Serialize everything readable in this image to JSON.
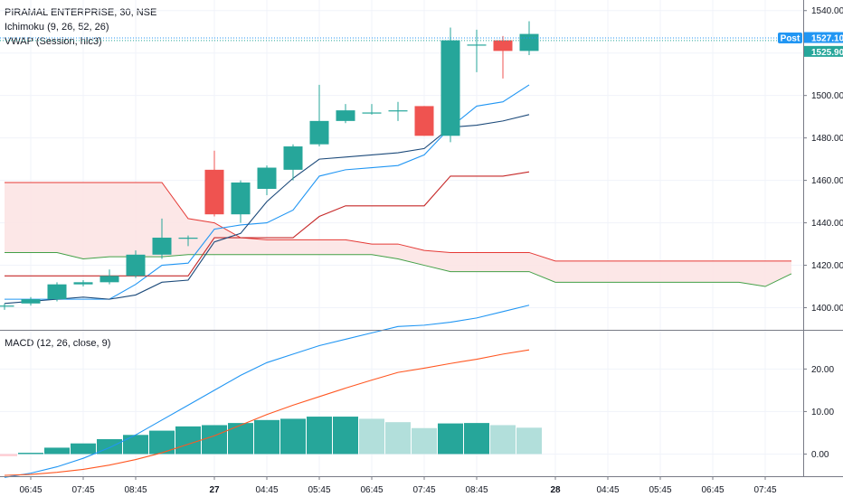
{
  "legend": {
    "title": "PIRAMAL ENTERPRISE, 30, NSE",
    "ichimoku": "Ichimoku (9, 26, 52, 26)",
    "vwap": "VWAP (Session, hlc3)",
    "macd": "MACD (12, 26, close, 9)"
  },
  "price_tags": {
    "post_label": "Post",
    "post_value": "1527.10",
    "vwap_value": "1525.90"
  },
  "colors": {
    "up": "#26a69a",
    "down": "#ef5350",
    "conversion": "#2196f3",
    "base": "#c62828",
    "span_a": "#43a047",
    "span_b": "#e53935",
    "cloud": "#fce4e4",
    "vwap": "#1c4a7a",
    "macd": "#2196f3",
    "signal": "#ff5722",
    "hist_strong": "#26a69a",
    "hist_weak": "#b2dfdb",
    "hist_neg": "#ffcdd2",
    "post_tag": "#2196f3",
    "vwap_tag": "#26a69a"
  },
  "chart_data": [
    {
      "type": "candlestick",
      "title": "PIRAMAL ENTERPRISE, 30, NSE",
      "ylim": [
        1390,
        1545
      ],
      "y_ticks": [
        "1400.00",
        "1420.00",
        "1440.00",
        "1460.00",
        "1480.00",
        "1500.00",
        "1520.00",
        "1540.00"
      ],
      "x_ticks": [
        "06:45",
        "07:45",
        "08:45",
        "27",
        "04:45",
        "05:45",
        "06:45",
        "07:45",
        "08:45",
        "28",
        "04:45",
        "05:45",
        "06:45",
        "07:45"
      ],
      "candles": [
        {
          "o": 1401,
          "h": 1402,
          "l": 1399,
          "c": 1401
        },
        {
          "o": 1402,
          "h": 1405,
          "l": 1401,
          "c": 1404
        },
        {
          "o": 1404,
          "h": 1412,
          "l": 1403,
          "c": 1411
        },
        {
          "o": 1411,
          "h": 1413,
          "l": 1410,
          "c": 1412
        },
        {
          "o": 1412,
          "h": 1418,
          "l": 1411,
          "c": 1415
        },
        {
          "o": 1415,
          "h": 1427,
          "l": 1414,
          "c": 1425
        },
        {
          "o": 1425,
          "h": 1442,
          "l": 1423,
          "c": 1433
        },
        {
          "o": 1433,
          "h": 1434,
          "l": 1429,
          "c": 1433
        },
        {
          "o": 1465,
          "h": 1474,
          "l": 1443,
          "c": 1444
        },
        {
          "o": 1444,
          "h": 1460,
          "l": 1440,
          "c": 1459
        },
        {
          "o": 1456,
          "h": 1467,
          "l": 1453,
          "c": 1466
        },
        {
          "o": 1465,
          "h": 1477,
          "l": 1460,
          "c": 1476
        },
        {
          "o": 1477,
          "h": 1505,
          "l": 1476,
          "c": 1488
        },
        {
          "o": 1488,
          "h": 1496,
          "l": 1487,
          "c": 1493
        },
        {
          "o": 1492,
          "h": 1496,
          "l": 1491,
          "c": 1492
        },
        {
          "o": 1493,
          "h": 1497,
          "l": 1488,
          "c": 1493
        },
        {
          "o": 1495,
          "h": 1495,
          "l": 1481,
          "c": 1481
        },
        {
          "o": 1481,
          "h": 1532,
          "l": 1478,
          "c": 1526
        },
        {
          "o": 1524,
          "h": 1531,
          "l": 1511,
          "c": 1524
        },
        {
          "o": 1526,
          "h": 1528,
          "l": 1508,
          "c": 1521
        },
        {
          "o": 1521,
          "h": 1535,
          "l": 1519,
          "c": 1529
        }
      ],
      "series": [
        {
          "name": "Conversion Line",
          "values": [
            1404,
            1404,
            1404,
            1404,
            1404,
            1411,
            1420,
            1421,
            1437,
            1439,
            1440,
            1446,
            1462,
            1465,
            1466,
            1467,
            1472,
            1485,
            1495,
            1497,
            1505
          ]
        },
        {
          "name": "Base Line",
          "values": [
            1415,
            1415,
            1415,
            1415,
            1415,
            1415,
            1415,
            1415,
            1433,
            1433,
            1433,
            1433,
            1443,
            1448,
            1448,
            1448,
            1448,
            1462,
            1462,
            1462,
            1464
          ]
        },
        {
          "name": "VWAP",
          "values": [
            1402,
            1403,
            1404,
            1405,
            1404,
            1406,
            1412,
            1413,
            1431,
            1435,
            1450,
            1461,
            1470,
            1471,
            1472,
            1473,
            1475,
            1485,
            1486,
            1488,
            1491
          ]
        },
        {
          "name": "Lagging Span",
          "values": []
        },
        {
          "name": "Lead 1",
          "values": [
            1426,
            1426,
            1426,
            1423,
            1424,
            1424,
            1424,
            1425,
            1425,
            1425,
            1425,
            1425,
            1425,
            1425,
            1425,
            1423,
            1420,
            1417,
            1417,
            1417,
            1417,
            1412,
            1412,
            1412,
            1412,
            1412,
            1412,
            1412,
            1412,
            1410,
            1416
          ]
        },
        {
          "name": "Lead 2",
          "values": [
            1459,
            1459,
            1459,
            1459,
            1459,
            1459,
            1459,
            1442,
            1440,
            1433,
            1432,
            1432,
            1432,
            1432,
            1430,
            1430,
            1427,
            1426,
            1426,
            1426,
            1426,
            1422,
            1422,
            1422,
            1422,
            1422,
            1422,
            1422,
            1422,
            1422,
            1422
          ]
        }
      ]
    },
    {
      "type": "bar+line",
      "title": "MACD (12, 26, close, 9)",
      "ylim": [
        -5,
        29
      ],
      "y_ticks": [
        "0.00",
        "10.00",
        "20.00"
      ],
      "histogram": [
        -0.5,
        0.3,
        1.5,
        2.5,
        3.5,
        4.5,
        5.5,
        6.5,
        6.8,
        7.3,
        8.0,
        8.3,
        8.8,
        8.8,
        8.3,
        7.5,
        6.1,
        7.2,
        7.3,
        6.8,
        6.2
      ],
      "series": [
        {
          "name": "MACD",
          "values": [
            -5.5,
            -4.5,
            -3.0,
            -1.0,
            1.5,
            4.5,
            8.0,
            11.5,
            15.0,
            18.5,
            21.5,
            23.5,
            25.5,
            27.0,
            28.5,
            30.0,
            30.3,
            31.0,
            32.0,
            33.5,
            35.0
          ]
        },
        {
          "name": "Signal",
          "values": [
            -5.0,
            -4.8,
            -4.3,
            -3.6,
            -2.6,
            -1.3,
            0.3,
            2.3,
            4.3,
            6.8,
            9.3,
            11.5,
            13.5,
            15.5,
            17.4,
            19.2,
            20.2,
            21.3,
            22.3,
            23.5,
            24.5
          ]
        }
      ]
    }
  ]
}
